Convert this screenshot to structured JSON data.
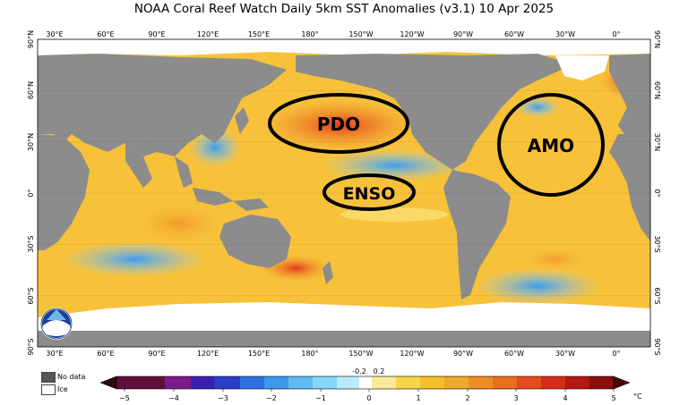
{
  "title": "NOAA Coral Reef Watch Daily 5km SST Anomalies  (v3.1)   10 Apr 2025",
  "map": {
    "top_lon_labels": [
      "30°E",
      "60°E",
      "90°E",
      "120°E",
      "150°E",
      "180°",
      "150°W",
      "120°W",
      "90°W",
      "60°W",
      "30°W",
      "0°"
    ],
    "bottom_lon_labels": [
      "30°E",
      "60°E",
      "90°E",
      "120°E",
      "150°E",
      "180°",
      "150°W",
      "120°W",
      "90°W",
      "60°W",
      "30°W",
      "0°"
    ],
    "left_lat_labels": [
      "90°N",
      "60°N",
      "30°N",
      "0°",
      "30°S",
      "60°S",
      "90°S"
    ],
    "right_lat_labels": [
      "90°N",
      "60°N",
      "30°N",
      "0°",
      "30°S",
      "60°S",
      "90°S"
    ],
    "annotations": [
      "PDO",
      "ENSO",
      "AMO"
    ]
  },
  "legend": {
    "no_data": "No data",
    "ice": "Ice",
    "no_data_color": "#8c8c8c",
    "ice_color": "#ffffff"
  },
  "colorbar": {
    "ticks": [
      "−5",
      "−4",
      "−3",
      "−2",
      "−1",
      "0",
      "1",
      "2",
      "3",
      "4",
      "5"
    ],
    "small_ticks": [
      "-0.2",
      "0.2"
    ],
    "unit": "°C"
  }
}
